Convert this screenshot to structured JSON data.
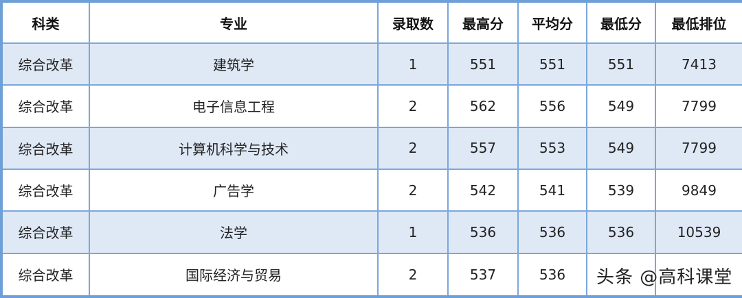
{
  "table": {
    "headers": [
      "科类",
      "专业",
      "录取数",
      "最高分",
      "平均分",
      "最低分",
      "最低排位"
    ],
    "rows": [
      [
        "综合改革",
        "建筑学",
        "1",
        "551",
        "551",
        "551",
        "7413"
      ],
      [
        "综合改革",
        "电子信息工程",
        "2",
        "562",
        "556",
        "549",
        "7799"
      ],
      [
        "综合改革",
        "计算机科学与技术",
        "2",
        "557",
        "553",
        "549",
        "7799"
      ],
      [
        "综合改革",
        "广告学",
        "2",
        "542",
        "541",
        "539",
        "9849"
      ],
      [
        "综合改革",
        "法学",
        "1",
        "536",
        "536",
        "536",
        "10539"
      ],
      [
        "综合改革",
        "国际经济与贸易",
        "2",
        "537",
        "536",
        "",
        ""
      ]
    ]
  },
  "watermark": "头条 @高科课堂",
  "colors": {
    "border": "#6e9fd6",
    "shade": "#dfe9f6"
  }
}
